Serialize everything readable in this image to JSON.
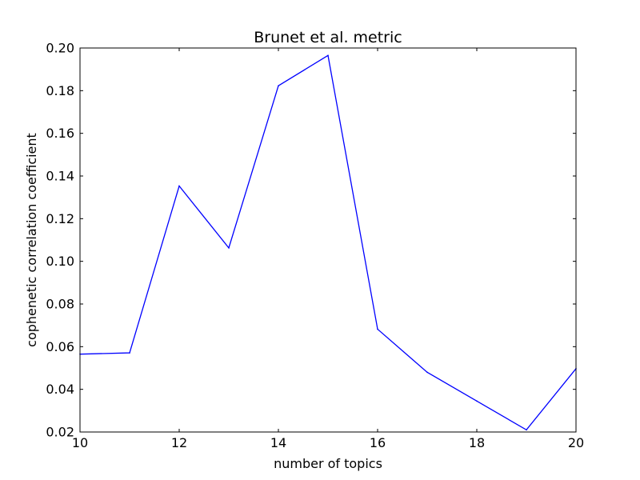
{
  "chart_data": {
    "type": "line",
    "title": "Brunet et al. metric",
    "xlabel": "number of topics",
    "ylabel": "cophenetic correlation coefficient",
    "xlim": [
      10,
      20
    ],
    "ylim": [
      0.02,
      0.2
    ],
    "x_ticks": [
      "10",
      "12",
      "14",
      "16",
      "18",
      "20"
    ],
    "y_ticks": [
      "0.02",
      "0.04",
      "0.06",
      "0.08",
      "0.10",
      "0.12",
      "0.14",
      "0.16",
      "0.18",
      "0.20"
    ],
    "grid": false,
    "series": [
      {
        "color": "#0000ff",
        "x": [
          10,
          11,
          12,
          13,
          14,
          15,
          16,
          17,
          18,
          19,
          20
        ],
        "y": [
          0.0565,
          0.0571,
          0.1353,
          0.1063,
          0.1823,
          0.1965,
          0.0682,
          0.048,
          0.0345,
          0.021,
          0.0497
        ]
      }
    ]
  }
}
